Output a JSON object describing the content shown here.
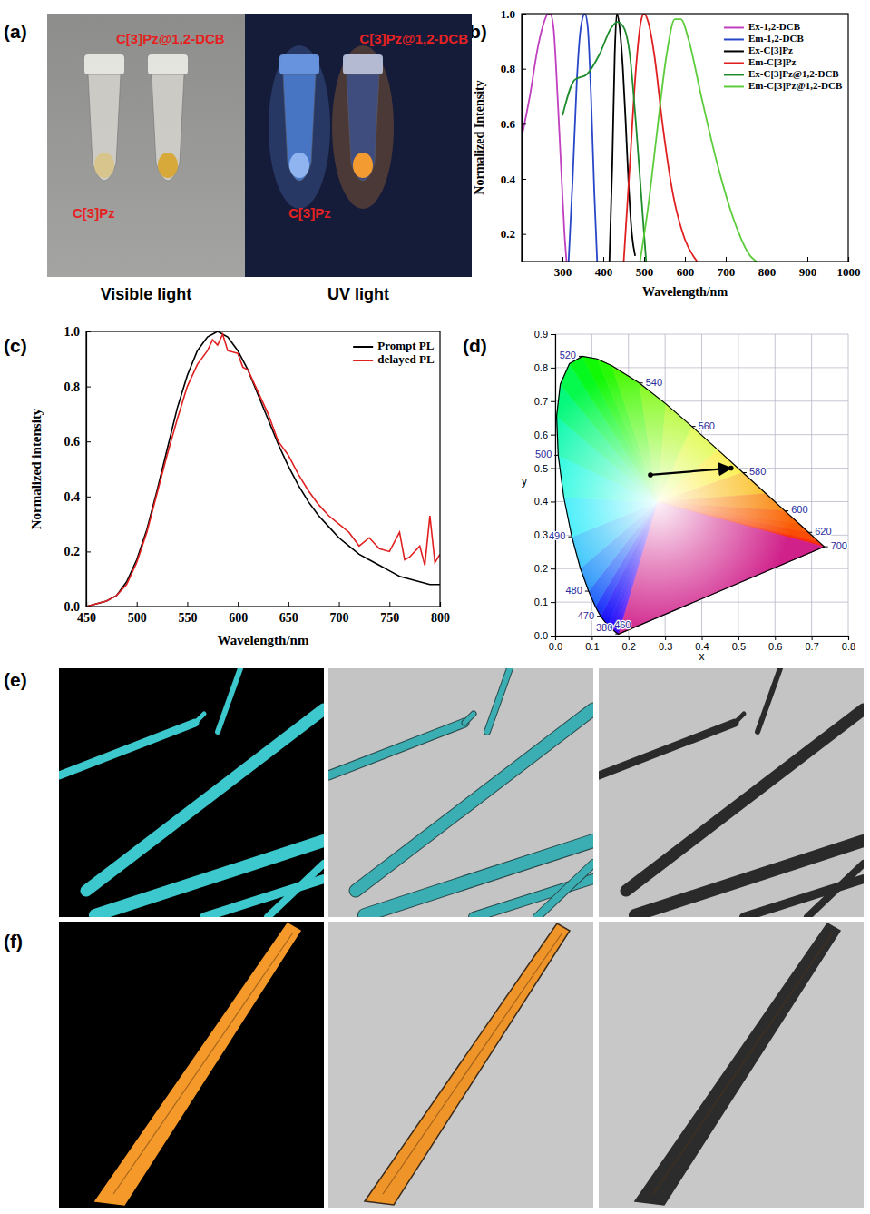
{
  "figure": {
    "panel_labels": [
      "(a)",
      "(b)",
      "(c)",
      "(d)",
      "(e)",
      "(f)"
    ]
  },
  "photo_a": {
    "sample_labels": [
      "C[3]Pz@1,2-DCB",
      "C[3]Pz"
    ],
    "captions": [
      "Visible light",
      "UV light"
    ]
  },
  "chart_data": [
    {
      "type": "line",
      "x_label": "Wavelength/nm",
      "y_label": "Normalized Intensity",
      "xlim": [
        200,
        1000
      ],
      "xticks": [
        300,
        400,
        500,
        600,
        700,
        800,
        900,
        1000
      ],
      "ylim": [
        0.1,
        1.0
      ],
      "yticks": [
        0.2,
        0.4,
        0.6,
        0.8,
        {
          "value": 1.0,
          "label": "1.0"
        }
      ],
      "legend": "upper right",
      "series": [
        {
          "name": "Ex-1,2-DCB",
          "color": "#c040c0",
          "x": [
            200,
            220,
            240,
            255,
            265,
            270,
            278,
            288,
            298,
            305,
            310
          ],
          "values": [
            0.55,
            0.7,
            0.88,
            0.97,
            1.0,
            1.0,
            0.95,
            0.7,
            0.4,
            0.2,
            0.1
          ]
        },
        {
          "name": "Em-1,2-DCB",
          "color": "#2846c8",
          "x": [
            315,
            325,
            335,
            345,
            355,
            362,
            370,
            378,
            385
          ],
          "values": [
            0.1,
            0.4,
            0.75,
            0.95,
            1.0,
            0.95,
            0.7,
            0.35,
            0.1
          ]
        },
        {
          "name": "Ex-C[3]Pz",
          "color": "#000000",
          "x": [
            415,
            422,
            428,
            433,
            440,
            448,
            455,
            462,
            470,
            478
          ],
          "values": [
            0.1,
            0.45,
            0.85,
            1.0,
            0.95,
            0.8,
            0.6,
            0.38,
            0.2,
            0.12
          ]
        },
        {
          "name": "Em-C[3]Pz",
          "color": "#e02020",
          "x": [
            450,
            465,
            480,
            492,
            500,
            510,
            525,
            545,
            570,
            600,
            630
          ],
          "values": [
            0.1,
            0.45,
            0.8,
            0.97,
            1.0,
            0.97,
            0.85,
            0.6,
            0.35,
            0.18,
            0.1
          ]
        },
        {
          "name": "Ex-C[3]Pz@1,2-DCB",
          "color": "#1e8c2c",
          "x": [
            300,
            330,
            360,
            390,
            420,
            435,
            450,
            465,
            480,
            495,
            505
          ],
          "values": [
            0.63,
            0.76,
            0.78,
            0.85,
            0.95,
            0.97,
            0.95,
            0.85,
            0.6,
            0.3,
            0.1
          ]
        },
        {
          "name": "Em-C[3]Pz@1,2-DCB",
          "color": "#5ccc3c",
          "x": [
            490,
            510,
            530,
            555,
            575,
            590,
            610,
            640,
            680,
            720,
            760,
            775
          ],
          "values": [
            0.1,
            0.3,
            0.55,
            0.85,
            0.98,
            0.98,
            0.9,
            0.7,
            0.45,
            0.25,
            0.12,
            0.1
          ]
        }
      ]
    },
    {
      "type": "line",
      "x_label": "Wavelength/nm",
      "y_label": "Normalized intensity",
      "xlim": [
        450,
        800
      ],
      "xticks": [
        450,
        500,
        550,
        600,
        650,
        700,
        750,
        800
      ],
      "ylim": [
        0,
        1.0
      ],
      "yticks": [
        {
          "value": 0,
          "label": "0.0"
        },
        0.2,
        0.4,
        0.6,
        0.8,
        {
          "value": 1.0,
          "label": "1.0"
        }
      ],
      "legend": "upper right",
      "series": [
        {
          "name": "Prompt PL",
          "color": "#000000",
          "x": [
            450,
            460,
            470,
            480,
            490,
            500,
            510,
            520,
            530,
            540,
            550,
            560,
            570,
            580,
            590,
            600,
            610,
            620,
            630,
            640,
            650,
            660,
            670,
            680,
            690,
            700,
            710,
            720,
            730,
            740,
            750,
            760,
            770,
            780,
            790,
            800
          ],
          "values": [
            0.0,
            0.01,
            0.02,
            0.04,
            0.09,
            0.17,
            0.28,
            0.42,
            0.57,
            0.72,
            0.84,
            0.93,
            0.98,
            1.0,
            0.98,
            0.93,
            0.86,
            0.77,
            0.68,
            0.59,
            0.51,
            0.44,
            0.38,
            0.33,
            0.29,
            0.25,
            0.22,
            0.19,
            0.17,
            0.15,
            0.13,
            0.11,
            0.1,
            0.09,
            0.08,
            0.08
          ]
        },
        {
          "name": "delayed PL",
          "color": "#e02020",
          "x": [
            450,
            460,
            470,
            480,
            490,
            500,
            510,
            520,
            530,
            540,
            550,
            560,
            570,
            575,
            580,
            585,
            590,
            600,
            605,
            610,
            620,
            630,
            640,
            650,
            660,
            670,
            680,
            690,
            700,
            710,
            720,
            730,
            740,
            750,
            760,
            765,
            770,
            780,
            785,
            790,
            795,
            800
          ],
          "values": [
            0.0,
            0.01,
            0.02,
            0.04,
            0.08,
            0.16,
            0.27,
            0.41,
            0.55,
            0.68,
            0.8,
            0.88,
            0.93,
            0.97,
            0.95,
            0.99,
            0.93,
            0.92,
            0.87,
            0.86,
            0.78,
            0.7,
            0.6,
            0.55,
            0.48,
            0.42,
            0.37,
            0.33,
            0.3,
            0.27,
            0.22,
            0.25,
            0.21,
            0.2,
            0.27,
            0.17,
            0.18,
            0.22,
            0.15,
            0.33,
            0.16,
            0.19
          ]
        }
      ]
    },
    {
      "type": "scatter",
      "x_label": "x",
      "y_label": "y",
      "xlim": [
        0,
        0.8
      ],
      "xticks": [
        {
          "value": 0,
          "label": "0.0"
        },
        0.1,
        0.2,
        0.3,
        0.4,
        0.5,
        0.6,
        0.7,
        0.8
      ],
      "ylim": [
        0,
        0.9
      ],
      "yticks": [
        {
          "value": 0,
          "label": "0.0"
        },
        0.1,
        0.2,
        0.3,
        0.4,
        0.5,
        0.6,
        0.7,
        0.8,
        0.9
      ],
      "grid": true,
      "series": [
        {
          "color": "#000000",
          "marker": "circle",
          "line_style": "arrow",
          "x": [
            0.26,
            0.48
          ],
          "values": [
            0.48,
            0.5
          ]
        }
      ],
      "locus": {
        "wavelength": [
          380,
          420,
          440,
          450,
          460,
          470,
          475,
          480,
          485,
          490,
          495,
          500,
          505,
          510,
          515,
          520,
          525,
          530,
          540,
          550,
          560,
          570,
          580,
          590,
          600,
          610,
          620,
          640,
          660,
          700
        ],
        "x": [
          0.1741,
          0.1714,
          0.1644,
          0.1566,
          0.144,
          0.1241,
          0.1096,
          0.0913,
          0.0687,
          0.0454,
          0.0235,
          0.0082,
          0.0039,
          0.0139,
          0.0389,
          0.0743,
          0.1142,
          0.1547,
          0.2296,
          0.3016,
          0.3731,
          0.4441,
          0.5125,
          0.5752,
          0.627,
          0.6658,
          0.6915,
          0.719,
          0.73,
          0.7347
        ],
        "y": [
          0.005,
          0.0051,
          0.0109,
          0.0177,
          0.0297,
          0.0578,
          0.0868,
          0.1327,
          0.2007,
          0.295,
          0.4127,
          0.5384,
          0.6548,
          0.7502,
          0.812,
          0.8338,
          0.8262,
          0.8059,
          0.7543,
          0.6923,
          0.6245,
          0.5547,
          0.4866,
          0.4242,
          0.3725,
          0.334,
          0.3083,
          0.2809,
          0.27,
          0.2653
        ]
      },
      "wavelength_labels": [
        380,
        460,
        470,
        480,
        490,
        500,
        520,
        540,
        560,
        580,
        600,
        620,
        700
      ]
    }
  ]
}
